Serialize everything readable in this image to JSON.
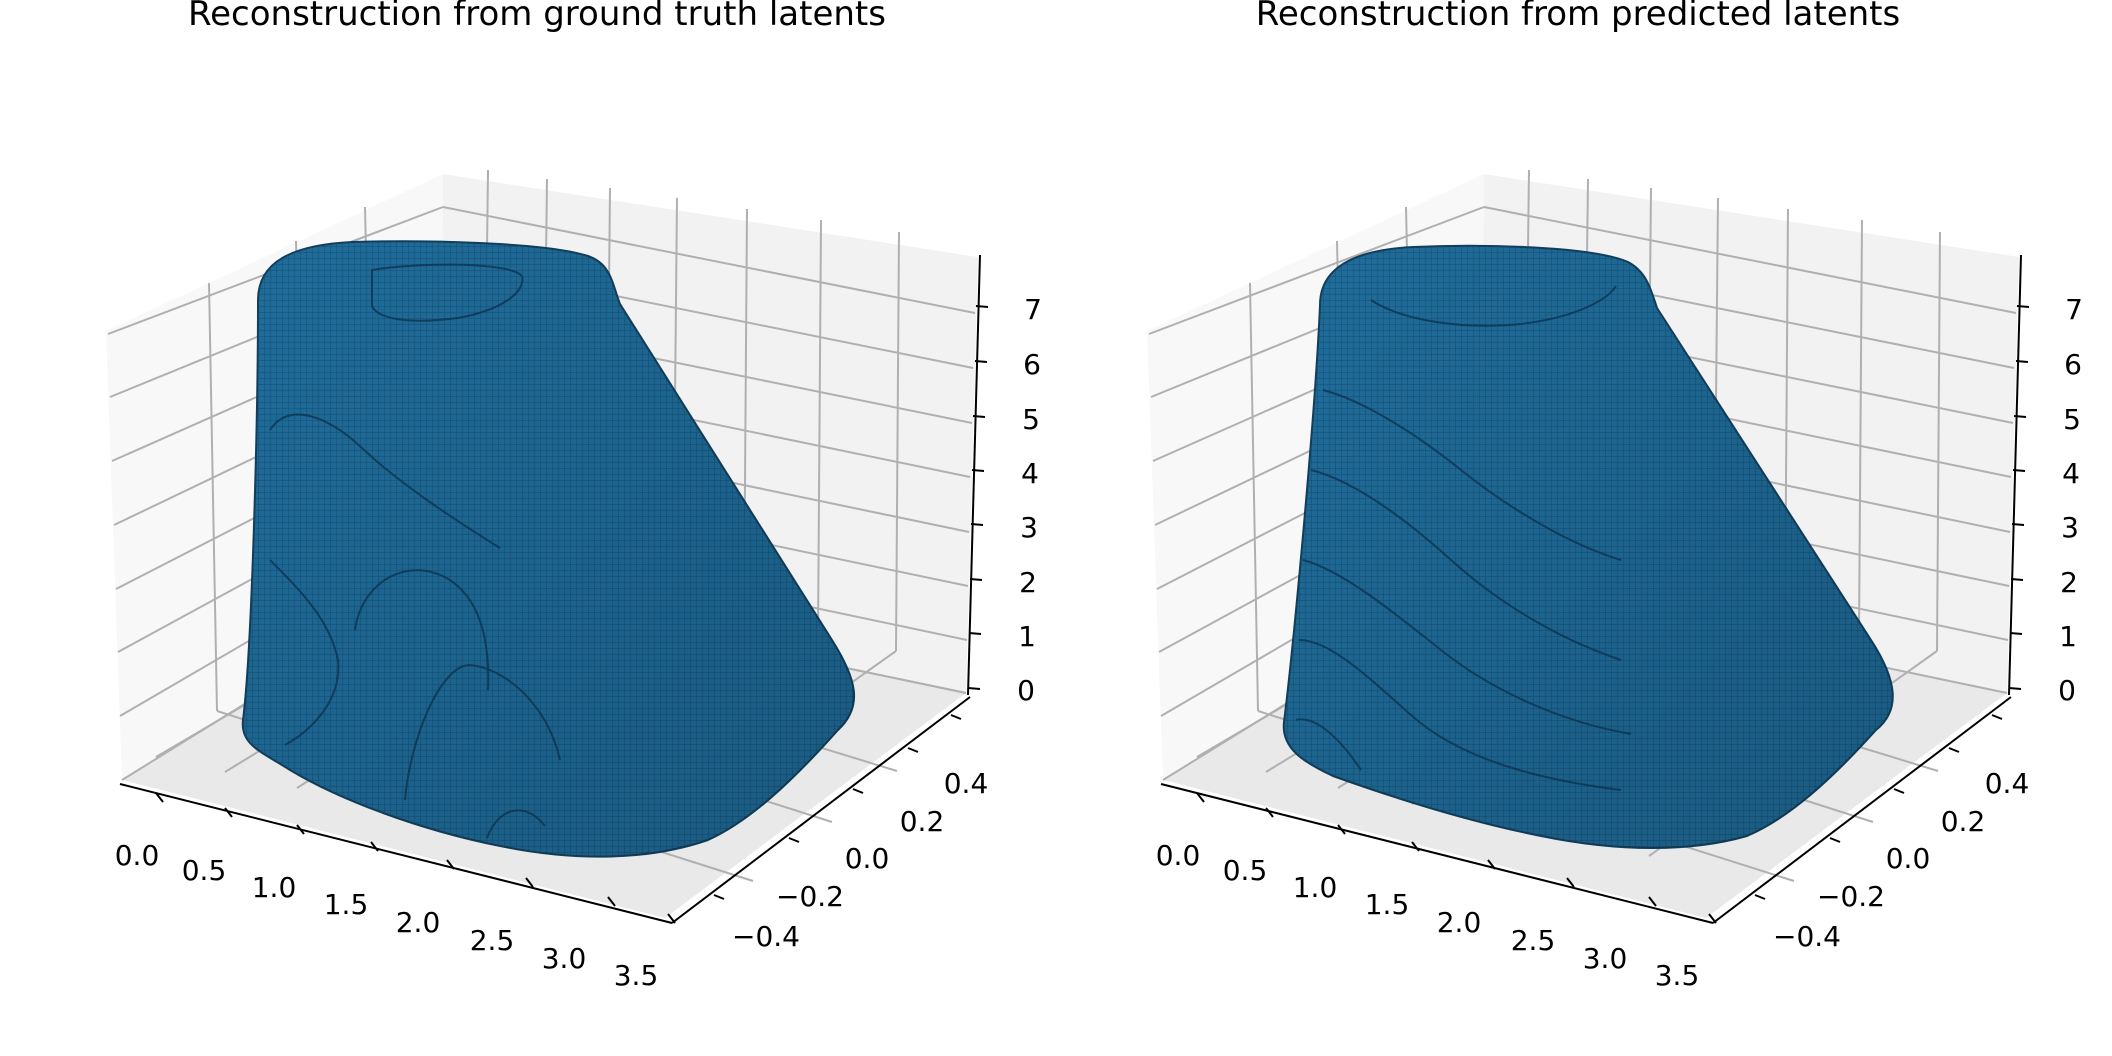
{
  "chart_data": [
    {
      "type": "surface3d",
      "title": "Reconstruction from ground truth latents",
      "x_ticks": [
        "0.0",
        "0.5",
        "1.0",
        "1.5",
        "2.0",
        "2.5",
        "3.0",
        "3.5"
      ],
      "y_ticks": [
        "−0.4",
        "−0.2",
        "0.0",
        "0.2",
        "0.4"
      ],
      "z_ticks": [
        "0",
        "1",
        "2",
        "3",
        "4",
        "5",
        "6",
        "7"
      ],
      "xlim": [
        -0.1,
        3.6
      ],
      "ylim": [
        -0.5,
        0.5
      ],
      "zlim": [
        -0.2,
        7.5
      ],
      "grid": true,
      "surface_color": "#1f6d9c"
    },
    {
      "type": "surface3d",
      "title": "Reconstruction from predicted latents",
      "x_ticks": [
        "0.0",
        "0.5",
        "1.0",
        "1.5",
        "2.0",
        "2.5",
        "3.0",
        "3.5"
      ],
      "y_ticks": [
        "−0.4",
        "−0.2",
        "0.0",
        "0.2",
        "0.4"
      ],
      "z_ticks": [
        "0",
        "1",
        "2",
        "3",
        "4",
        "5",
        "6",
        "7"
      ],
      "xlim": [
        -0.1,
        3.6
      ],
      "ylim": [
        -0.5,
        0.5
      ],
      "zlim": [
        -0.2,
        7.5
      ],
      "grid": true,
      "surface_color": "#1f6d9c"
    }
  ]
}
